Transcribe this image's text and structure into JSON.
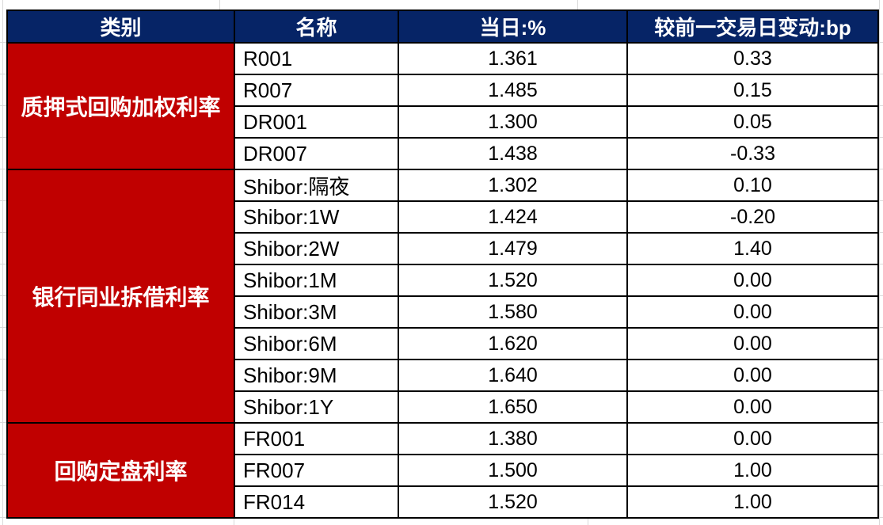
{
  "table": {
    "columns": [
      "类别",
      "名称",
      "当日:%",
      "较前一交易日变动:bp"
    ],
    "groups": [
      {
        "category": "质押式回购加权利率",
        "rows": [
          [
            "R001",
            "1.361",
            "0.33"
          ],
          [
            "R007",
            "1.485",
            "0.15"
          ],
          [
            "DR001",
            "1.300",
            "0.05"
          ],
          [
            "DR007",
            "1.438",
            "-0.33"
          ]
        ]
      },
      {
        "category": "银行同业拆借利率",
        "rows": [
          [
            "Shibor:隔夜",
            "1.302",
            "0.10"
          ],
          [
            "Shibor:1W",
            "1.424",
            "-0.20"
          ],
          [
            "Shibor:2W",
            "1.479",
            "1.40"
          ],
          [
            "Shibor:1M",
            "1.520",
            "0.00"
          ],
          [
            "Shibor:3M",
            "1.580",
            "0.00"
          ],
          [
            "Shibor:6M",
            "1.620",
            "0.00"
          ],
          [
            "Shibor:9M",
            "1.640",
            "0.00"
          ],
          [
            "Shibor:1Y",
            "1.650",
            "0.00"
          ]
        ]
      },
      {
        "category": "回购定盘利率",
        "rows": [
          [
            "FR001",
            "1.380",
            "0.00"
          ],
          [
            "FR007",
            "1.500",
            "1.00"
          ],
          [
            "FR014",
            "1.520",
            "1.00"
          ]
        ]
      }
    ]
  },
  "colors": {
    "header_bg": "#062466",
    "category_bg": "#c00000",
    "border": "#000000",
    "margin_grid": "#d9d9d9",
    "header_text": "#ffffff",
    "cell_text": "#000000"
  }
}
